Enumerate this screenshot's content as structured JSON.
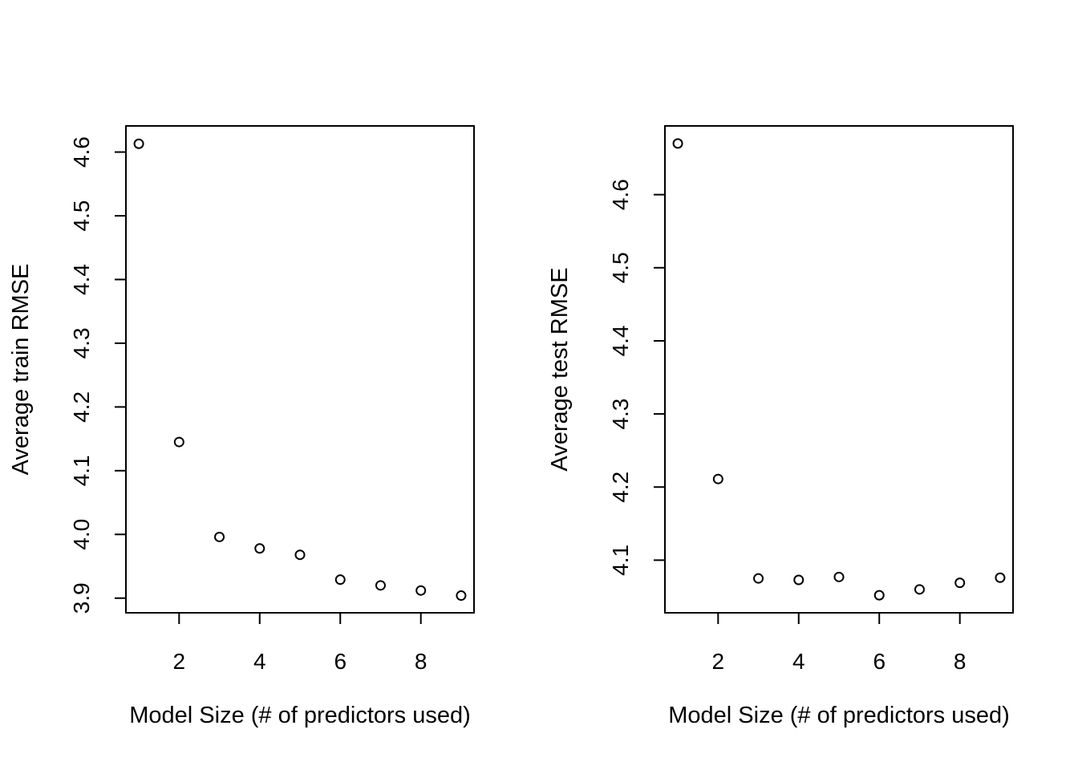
{
  "chart_data": [
    {
      "type": "scatter",
      "title": "",
      "xlabel": "Model Size (# of predictors used)",
      "ylabel": "Average train RMSE",
      "x": [
        1,
        2,
        3,
        4,
        5,
        6,
        7,
        8,
        9
      ],
      "y": [
        4.613,
        4.145,
        3.996,
        3.978,
        3.968,
        3.929,
        3.92,
        3.912,
        3.904
      ],
      "xlim": [
        0.68,
        9.32
      ],
      "ylim": [
        3.877,
        4.641
      ],
      "xticks": [
        2,
        4,
        6,
        8
      ],
      "xtick_labels": [
        "2",
        "4",
        "6",
        "8"
      ],
      "yticks": [
        3.9,
        4.0,
        4.1,
        4.2,
        4.3,
        4.4,
        4.5,
        4.6
      ],
      "ytick_labels": [
        "3.9",
        "4.0",
        "4.1",
        "4.2",
        "4.3",
        "4.4",
        "4.5",
        "4.6"
      ],
      "marker": "open-circle",
      "grid": false,
      "legend": "none"
    },
    {
      "type": "scatter",
      "title": "",
      "xlabel": "Model Size (# of predictors used)",
      "ylabel": "Average test RMSE",
      "x": [
        1,
        2,
        3,
        4,
        5,
        6,
        7,
        8,
        9
      ],
      "y": [
        4.67,
        4.211,
        4.075,
        4.073,
        4.077,
        4.052,
        4.06,
        4.069,
        4.076
      ],
      "xlim": [
        0.68,
        9.32
      ],
      "ylim": [
        4.028,
        4.694
      ],
      "xticks": [
        2,
        4,
        6,
        8
      ],
      "xtick_labels": [
        "2",
        "4",
        "6",
        "8"
      ],
      "yticks": [
        4.1,
        4.2,
        4.3,
        4.4,
        4.5,
        4.6
      ],
      "ytick_labels": [
        "4.1",
        "4.2",
        "4.3",
        "4.4",
        "4.5",
        "4.6"
      ],
      "marker": "open-circle",
      "grid": false,
      "legend": "none"
    }
  ]
}
